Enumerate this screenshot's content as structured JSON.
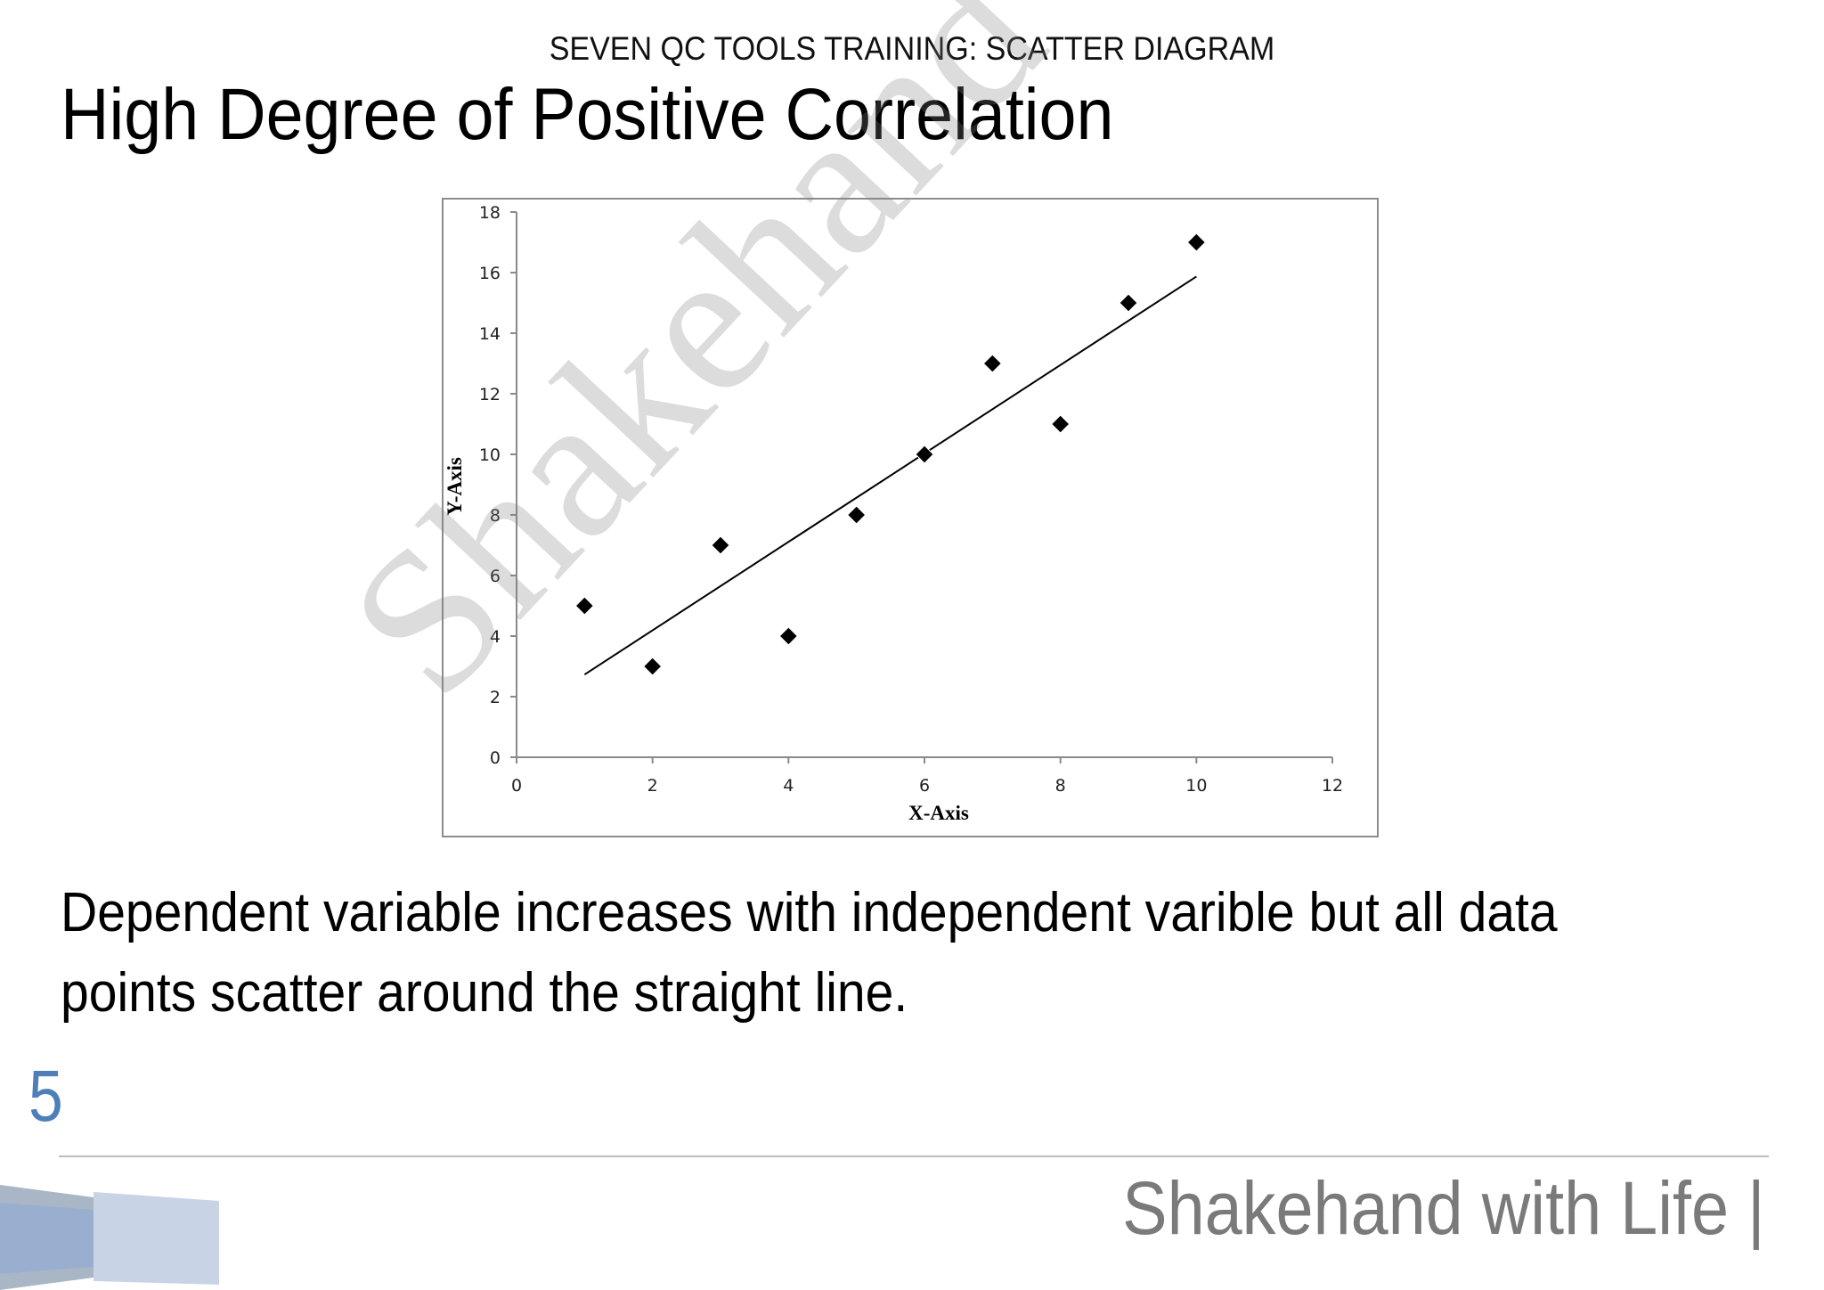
{
  "header": {
    "text": "SEVEN QC TOOLS TRAINING:  SCATTER DIAGRAM"
  },
  "title": "High Degree of Positive Correlation",
  "description": "Dependent variable increases with independent varible but all data points scatter around the straight line.",
  "page_number": "5",
  "footer": {
    "brand": "Shakehand with Life |"
  },
  "watermark": "Shakehand with Life",
  "colors": {
    "accent": "#4f7fb8",
    "footer_text": "#7a7a7a",
    "marker": "#000000"
  },
  "chart_data": {
    "type": "scatter",
    "x": [
      1,
      2,
      3,
      4,
      5,
      6,
      7,
      8,
      9,
      10
    ],
    "y": [
      5,
      3,
      7,
      4,
      8,
      10,
      13,
      11,
      15,
      17
    ],
    "trendline": {
      "type": "linear",
      "x": [
        1,
        10
      ],
      "y": [
        2.73,
        15.87
      ]
    },
    "xlabel": "X-Axis",
    "ylabel": "Y-Axis",
    "xlim": [
      0,
      12
    ],
    "ylim": [
      0,
      18
    ],
    "xticks": [
      "0",
      "2",
      "4",
      "6",
      "8",
      "10",
      "12"
    ],
    "yticks": [
      "0",
      "2",
      "4",
      "6",
      "8",
      "10",
      "12",
      "14",
      "16",
      "18"
    ],
    "grid": false,
    "legend": "none"
  }
}
